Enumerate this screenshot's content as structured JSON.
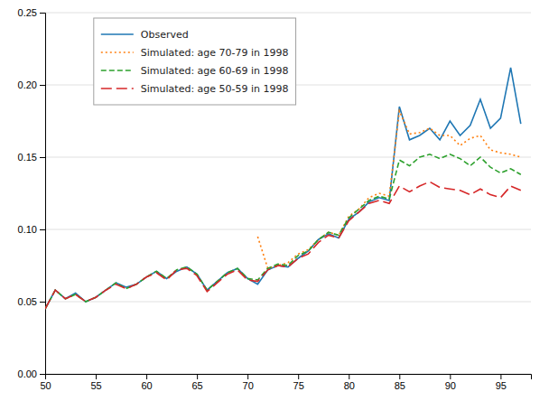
{
  "chart_data": {
    "type": "line",
    "xlim": [
      50,
      98
    ],
    "ylim": [
      0.0,
      0.25
    ],
    "xticks": [
      50,
      55,
      60,
      65,
      70,
      75,
      80,
      85,
      90,
      95
    ],
    "yticks": [
      {
        "value": 0,
        "label": "0.00"
      },
      0.05,
      {
        "value": 0.1,
        "label": "0.10"
      },
      0.15,
      {
        "value": 0.2,
        "label": "0.20"
      },
      0.25
    ],
    "grid": "y",
    "legend": "upper left",
    "series": [
      {
        "name": "Observed",
        "line_style": "solid",
        "x": [
          50,
          51,
          52,
          53,
          54,
          55,
          56,
          57,
          58,
          59,
          60,
          61,
          62,
          63,
          64,
          65,
          66,
          67,
          68,
          69,
          70,
          71,
          72,
          73,
          74,
          75,
          76,
          77,
          78,
          79,
          80,
          81,
          82,
          83,
          84,
          85,
          86,
          87,
          88,
          89,
          90,
          91,
          92,
          93,
          94,
          95,
          96,
          97
        ],
        "values": [
          0.045,
          0.058,
          0.052,
          0.056,
          0.05,
          0.053,
          0.058,
          0.063,
          0.06,
          0.062,
          0.067,
          0.071,
          0.066,
          0.071,
          0.074,
          0.069,
          0.058,
          0.064,
          0.07,
          0.073,
          0.066,
          0.062,
          0.072,
          0.075,
          0.074,
          0.08,
          0.085,
          0.093,
          0.097,
          0.094,
          0.107,
          0.112,
          0.119,
          0.122,
          0.12,
          0.185,
          0.162,
          0.165,
          0.17,
          0.162,
          0.175,
          0.165,
          0.172,
          0.19,
          0.17,
          0.177,
          0.212,
          0.173
        ]
      },
      {
        "name": "Simulated: age 70-79 in 1998",
        "line_style": "dotted",
        "x": [
          71,
          72,
          73,
          74,
          75,
          76,
          77,
          78,
          79,
          80,
          81,
          82,
          83,
          84,
          85,
          86,
          87,
          88,
          89,
          90,
          91,
          92,
          93,
          94,
          95,
          96,
          97
        ],
        "values": [
          0.095,
          0.073,
          0.075,
          0.077,
          0.083,
          0.086,
          0.093,
          0.098,
          0.096,
          0.109,
          0.114,
          0.122,
          0.125,
          0.123,
          0.182,
          0.166,
          0.167,
          0.17,
          0.165,
          0.165,
          0.158,
          0.163,
          0.165,
          0.155,
          0.153,
          0.152,
          0.15
        ]
      },
      {
        "name": "Simulated: age 60-69 in 1998",
        "line_style": "dashed",
        "x": [
          50,
          51,
          52,
          53,
          54,
          55,
          56,
          57,
          58,
          59,
          60,
          61,
          62,
          63,
          64,
          65,
          66,
          67,
          68,
          69,
          70,
          71,
          72,
          73,
          74,
          75,
          76,
          77,
          78,
          79,
          80,
          81,
          82,
          83,
          84,
          85,
          86,
          87,
          88,
          89,
          90,
          91,
          92,
          93,
          94,
          95,
          96,
          97
        ],
        "values": [
          0.045,
          0.058,
          0.052,
          0.055,
          0.05,
          0.053,
          0.058,
          0.063,
          0.059,
          0.062,
          0.067,
          0.071,
          0.066,
          0.072,
          0.074,
          0.069,
          0.058,
          0.064,
          0.07,
          0.073,
          0.066,
          0.065,
          0.073,
          0.076,
          0.075,
          0.082,
          0.085,
          0.093,
          0.098,
          0.096,
          0.108,
          0.114,
          0.12,
          0.123,
          0.121,
          0.148,
          0.144,
          0.15,
          0.152,
          0.149,
          0.152,
          0.149,
          0.144,
          0.15,
          0.143,
          0.139,
          0.142,
          0.138
        ]
      },
      {
        "name": "Simulated: age 50-59 in 1998",
        "line_style": "longdash",
        "x": [
          50,
          51,
          52,
          53,
          54,
          55,
          56,
          57,
          58,
          59,
          60,
          61,
          62,
          63,
          64,
          65,
          66,
          67,
          68,
          69,
          70,
          71,
          72,
          73,
          74,
          75,
          76,
          77,
          78,
          79,
          80,
          81,
          82,
          83,
          84,
          85,
          86,
          87,
          88,
          89,
          90,
          91,
          92,
          93,
          94,
          95,
          96,
          97
        ],
        "values": [
          0.045,
          0.058,
          0.052,
          0.055,
          0.05,
          0.053,
          0.058,
          0.062,
          0.059,
          0.062,
          0.067,
          0.07,
          0.065,
          0.072,
          0.073,
          0.068,
          0.057,
          0.063,
          0.069,
          0.072,
          0.065,
          0.064,
          0.072,
          0.075,
          0.074,
          0.08,
          0.083,
          0.091,
          0.096,
          0.094,
          0.106,
          0.112,
          0.118,
          0.12,
          0.118,
          0.13,
          0.126,
          0.13,
          0.133,
          0.129,
          0.128,
          0.127,
          0.124,
          0.128,
          0.124,
          0.122,
          0.13,
          0.127
        ]
      }
    ]
  }
}
